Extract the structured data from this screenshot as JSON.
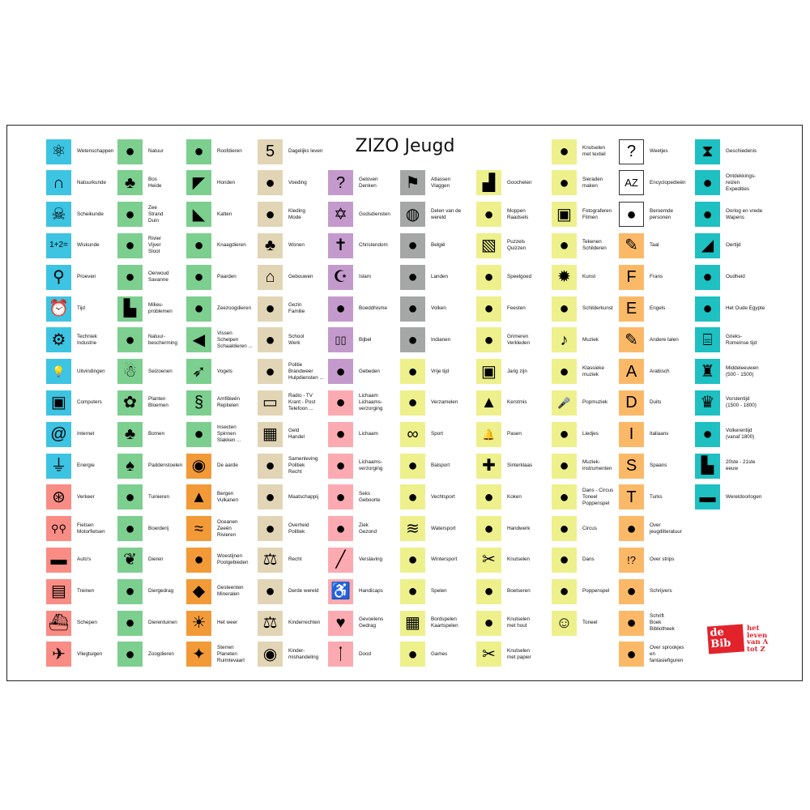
{
  "title": "ZIZO Jeugd",
  "colors": {
    "cyan": "#3cc4e2",
    "green": "#7ccf8e",
    "salmon": "#f98c84",
    "orange": "#f39a38",
    "tan": "#e2d5b5",
    "purple": "#c49acd",
    "pink": "#fcaab1",
    "gray": "#a5a7a7",
    "yellow": "#eef08c",
    "lightorange": "#fbb968",
    "teal": "#1ec0c2",
    "white": "#ffffff"
  },
  "logo": {
    "mark": "de Bib",
    "tagline": "het\nleven\nvan A\ntot Z"
  },
  "columns": [
    [
      {
        "label": "Wetenschappen",
        "icon": "atom-icon",
        "color": "cyan"
      },
      {
        "label": "Natuurkunde",
        "icon": "magnet-icon",
        "color": "cyan"
      },
      {
        "label": "Scheikunde",
        "icon": "skull-icon",
        "color": "cyan"
      },
      {
        "label": "Wiskunde",
        "icon": "math-icon",
        "color": "cyan"
      },
      {
        "label": "Proeven",
        "icon": "flask-icon",
        "color": "cyan"
      },
      {
        "label": "Tijd",
        "icon": "alarm-clock-icon",
        "color": "cyan"
      },
      {
        "label": "Techniek\nIndustrie",
        "icon": "gears-icon",
        "color": "cyan"
      },
      {
        "label": "Uitvindingen",
        "icon": "lightbulb-icon",
        "color": "cyan"
      },
      {
        "label": "Computers",
        "icon": "computer-icon",
        "color": "cyan"
      },
      {
        "label": "Internet",
        "icon": "at-sign-icon",
        "color": "cyan"
      },
      {
        "label": "Energie",
        "icon": "plug-icon",
        "color": "cyan"
      },
      {
        "label": "Verkeer",
        "icon": "wheel-icon",
        "color": "salmon"
      },
      {
        "label": "Fietsen\nMotorfietsen",
        "icon": "bicycle-icon",
        "color": "salmon"
      },
      {
        "label": "Auto's",
        "icon": "car-icon",
        "color": "salmon"
      },
      {
        "label": "Treinen",
        "icon": "train-icon",
        "color": "salmon"
      },
      {
        "label": "Schepen",
        "icon": "ship-icon",
        "color": "salmon"
      },
      {
        "label": "Vliegtuigen",
        "icon": "airplane-icon",
        "color": "salmon"
      }
    ],
    [
      {
        "label": "Natuur",
        "icon": "nature-icon",
        "color": "green"
      },
      {
        "label": "Bos\nHeide",
        "icon": "forest-icon",
        "color": "green"
      },
      {
        "label": "Zee\nStrand\nDuin",
        "icon": "starfish-icon",
        "color": "green"
      },
      {
        "label": "Rivier\nVijver\nSloot",
        "icon": "pond-icon",
        "color": "green"
      },
      {
        "label": "Oerwoud\nSavanne",
        "icon": "jungle-icon",
        "color": "green"
      },
      {
        "label": "Milieu-\nproblemen",
        "icon": "factory-icon",
        "color": "green"
      },
      {
        "label": "Natuur-\nbescherming",
        "icon": "tree-stump-icon",
        "color": "green"
      },
      {
        "label": "Seizoenen",
        "icon": "snowman-icon",
        "color": "green"
      },
      {
        "label": "Planten\nBloemen",
        "icon": "flower-icon",
        "color": "green"
      },
      {
        "label": "Bomen",
        "icon": "tree-icon",
        "color": "green"
      },
      {
        "label": "Paddenstoelen",
        "icon": "mushroom-icon",
        "color": "green"
      },
      {
        "label": "Tuinieren",
        "icon": "shovel-icon",
        "color": "green"
      },
      {
        "label": "Boerderij",
        "icon": "tractor-icon",
        "color": "green"
      },
      {
        "label": "Dieren",
        "icon": "paw-icon",
        "color": "green"
      },
      {
        "label": "Diergedrag",
        "icon": "nest-icon",
        "color": "green"
      },
      {
        "label": "Dierentuinen",
        "icon": "cage-icon",
        "color": "green"
      },
      {
        "label": "Zoogdieren",
        "icon": "elephant-icon",
        "color": "green"
      }
    ],
    [
      {
        "label": "Roofdieren",
        "icon": "tiger-icon",
        "color": "green"
      },
      {
        "label": "Honden",
        "icon": "dog-icon",
        "color": "green"
      },
      {
        "label": "Katten",
        "icon": "cat-icon",
        "color": "green"
      },
      {
        "label": "Knaagdieren",
        "icon": "rabbit-icon",
        "color": "green"
      },
      {
        "label": "Paarden",
        "icon": "horse-icon",
        "color": "green"
      },
      {
        "label": "Zeezoogdieren",
        "icon": "dolphin-icon",
        "color": "green"
      },
      {
        "label": "Vissen\nSchelpen\nSchaaldieren ...",
        "icon": "fish-icon",
        "color": "green"
      },
      {
        "label": "Vogels",
        "icon": "bird-icon",
        "color": "green"
      },
      {
        "label": "Amfibieën\nReptielen",
        "icon": "snake-icon",
        "color": "green"
      },
      {
        "label": "Insecten\nSpinnen\nSlakken ...",
        "icon": "fly-icon",
        "color": "green"
      },
      {
        "label": "De aarde",
        "icon": "earth-icon",
        "color": "orange"
      },
      {
        "label": "Bergen\nVulkanen",
        "icon": "volcano-icon",
        "color": "orange"
      },
      {
        "label": "Oceanen\nZeeën\nRivieren",
        "icon": "wave-icon",
        "color": "orange"
      },
      {
        "label": "Woestijnen\nPoolgebieden",
        "icon": "cactus-igloo-icon",
        "color": "orange"
      },
      {
        "label": "Gesteenten\nMineralen",
        "icon": "diamond-icon",
        "color": "orange"
      },
      {
        "label": "Het weer",
        "icon": "sun-cloud-icon",
        "color": "orange"
      },
      {
        "label": "Sterren\nPlaneten\nRuimtevaart",
        "icon": "rocket-icon",
        "color": "orange"
      }
    ],
    [
      {
        "label": "Dagelijks leven",
        "icon": "calendar-icon",
        "color": "tan"
      },
      {
        "label": "Voeding",
        "icon": "plate-icon",
        "color": "tan"
      },
      {
        "label": "Kleding\nMode",
        "icon": "clothing-icon",
        "color": "tan"
      },
      {
        "label": "Wonen",
        "icon": "house-tree-icon",
        "color": "tan"
      },
      {
        "label": "Gebouwen",
        "icon": "building-icon",
        "color": "tan"
      },
      {
        "label": "Gezin\nFamilie",
        "icon": "family-icon",
        "color": "tan"
      },
      {
        "label": "School\nWerk",
        "icon": "blackboard-icon",
        "color": "tan"
      },
      {
        "label": "Politie\nBrandweer\nHulpdiensten ...",
        "icon": "police-icon",
        "color": "tan"
      },
      {
        "label": "Radio - TV\nKrant - Post\nTelefoon ...",
        "icon": "tv-icon",
        "color": "tan"
      },
      {
        "label": "Geld\nHandel",
        "icon": "money-icon",
        "color": "tan"
      },
      {
        "label": "Samenleving\nPolitiek\nRecht",
        "icon": "people-icon",
        "color": "tan"
      },
      {
        "label": "Maatschappij",
        "icon": "society-icon",
        "color": "tan"
      },
      {
        "label": "Overheid\nPolitiek",
        "icon": "pen-icon",
        "color": "tan"
      },
      {
        "label": "Recht",
        "icon": "justice-icon",
        "color": "tan"
      },
      {
        "label": "Derde wereld",
        "icon": "world-map-icon",
        "color": "tan"
      },
      {
        "label": "Kinderrechten",
        "icon": "scales-icon",
        "color": "tan"
      },
      {
        "label": "Kinder-\nmishandeling",
        "icon": "crying-eye-icon",
        "color": "tan"
      }
    ],
    [
      {
        "label": "Geloven\nDenken",
        "icon": "head-question-icon",
        "color": "purple"
      },
      {
        "label": "Godsdiensten",
        "icon": "religion-symbols-icon",
        "color": "purple"
      },
      {
        "label": "Christendom",
        "icon": "cross-icon",
        "color": "purple"
      },
      {
        "label": "Islam",
        "icon": "mosque-icon",
        "color": "purple"
      },
      {
        "label": "Boeddhisme",
        "icon": "buddha-icon",
        "color": "purple"
      },
      {
        "label": "Bijbel",
        "icon": "book-icon",
        "color": "purple"
      },
      {
        "label": "Gebeden",
        "icon": "praying-icon",
        "color": "purple"
      },
      {
        "label": "Lichaam\nLichaams-\nverzorging",
        "icon": "skeleton-icon",
        "color": "pink"
      },
      {
        "label": "Lichaam",
        "icon": "body-icon",
        "color": "pink"
      },
      {
        "label": "Lichaams-\nverzorging",
        "icon": "toothbrush-icon",
        "color": "pink"
      },
      {
        "label": "Seks\nGeboorte",
        "icon": "man-woman-icon",
        "color": "pink"
      },
      {
        "label": "Ziek\nGezond",
        "icon": "stethoscope-icon",
        "color": "pink"
      },
      {
        "label": "Verslaving",
        "icon": "syringe-icon",
        "color": "pink"
      },
      {
        "label": "Handicaps",
        "icon": "wheelchair-icon",
        "color": "pink"
      },
      {
        "label": "Gevoelens\nGedrag",
        "icon": "heart-icon",
        "color": "pink"
      },
      {
        "label": "Dood",
        "icon": "candle-icon",
        "color": "pink"
      }
    ],
    [
      {
        "label": "Atlassen\nVlaggen",
        "icon": "flag-icon",
        "color": "gray"
      },
      {
        "label": "Delen van de\nwereld",
        "icon": "globe-icon",
        "color": "gray"
      },
      {
        "label": "België",
        "icon": "belgium-map-icon",
        "color": "gray"
      },
      {
        "label": "Landen",
        "icon": "landen-icon",
        "color": "gray"
      },
      {
        "label": "Volken",
        "icon": "archer-icon",
        "color": "gray"
      },
      {
        "label": "Indianen",
        "icon": "tent-icon",
        "color": "gray"
      },
      {
        "label": "Vrije tijd",
        "icon": "kite-icon",
        "color": "yellow"
      },
      {
        "label": "Verzamelen",
        "icon": "stamp-icon",
        "color": "yellow"
      },
      {
        "label": "Sport",
        "icon": "olympic-rings-icon",
        "color": "yellow"
      },
      {
        "label": "Balsport",
        "icon": "football-icon",
        "color": "yellow"
      },
      {
        "label": "Vechtsport",
        "icon": "martial-arts-icon",
        "color": "yellow"
      },
      {
        "label": "Watersport",
        "icon": "swimmer-icon",
        "color": "yellow"
      },
      {
        "label": "Wintersport",
        "icon": "skier-icon",
        "color": "yellow"
      },
      {
        "label": "Spelen",
        "icon": "playing-child-icon",
        "color": "yellow"
      },
      {
        "label": "Bordspelen\nKaartspelen",
        "icon": "checkerboard-icon",
        "color": "yellow"
      },
      {
        "label": "Games",
        "icon": "game-console-icon",
        "color": "yellow"
      }
    ],
    [
      {
        "label": "Goochelen",
        "icon": "magic-hat-icon",
        "color": "yellow"
      },
      {
        "label": "Moppen\nRaadsels",
        "icon": "clown-face-icon",
        "color": "yellow"
      },
      {
        "label": "Puzzels\nQuizzen",
        "icon": "puzzle-icon",
        "color": "yellow"
      },
      {
        "label": "Speelgoed",
        "icon": "teddy-bear-icon",
        "color": "yellow"
      },
      {
        "label": "Feesten",
        "icon": "champagne-icon",
        "color": "yellow"
      },
      {
        "label": "Grimeren\nVerkleden",
        "icon": "mask-icon",
        "color": "yellow"
      },
      {
        "label": "Jarig zijn",
        "icon": "gift-icon",
        "color": "yellow"
      },
      {
        "label": "Kerstmis",
        "icon": "christmas-tree-icon",
        "color": "yellow"
      },
      {
        "label": "Pasen",
        "icon": "bell-icon",
        "color": "yellow"
      },
      {
        "label": "Sinterklaas",
        "icon": "mitre-icon",
        "color": "yellow"
      },
      {
        "label": "Koken",
        "icon": "chef-icon",
        "color": "yellow"
      },
      {
        "label": "Handwerk",
        "icon": "yarn-icon",
        "color": "yellow"
      },
      {
        "label": "Knutselen",
        "icon": "scissors-icon",
        "color": "yellow"
      },
      {
        "label": "Boetseren",
        "icon": "jug-icon",
        "color": "yellow"
      },
      {
        "label": "Knutselen\nmet hout",
        "icon": "saw-icon",
        "color": "yellow"
      },
      {
        "label": "Knutselen\nmet papier",
        "icon": "paper-scissors-icon",
        "color": "yellow"
      }
    ],
    [
      {
        "label": "Knutselen\nmet textiel",
        "icon": "doll-icon",
        "color": "yellow"
      },
      {
        "label": "Sieraden\nmaken",
        "icon": "necklace-icon",
        "color": "yellow"
      },
      {
        "label": "Fotograferen\nFilmen",
        "icon": "camera-icon",
        "color": "yellow"
      },
      {
        "label": "Tekenen\nSchilderen",
        "icon": "palette-icon",
        "color": "yellow"
      },
      {
        "label": "Kunst",
        "icon": "splash-icon",
        "color": "yellow"
      },
      {
        "label": "Schilderkunst",
        "icon": "paint-palette-icon",
        "color": "yellow"
      },
      {
        "label": "Muziek",
        "icon": "music-note-icon",
        "color": "yellow"
      },
      {
        "label": "Klassieke\nmuziek",
        "icon": "conductor-icon",
        "color": "yellow"
      },
      {
        "label": "Popmuziek",
        "icon": "microphone-icon",
        "color": "yellow"
      },
      {
        "label": "Liedjes",
        "icon": "singing-icon",
        "color": "yellow"
      },
      {
        "label": "Muziek-\ninstrumenten",
        "icon": "tuba-icon",
        "color": "yellow"
      },
      {
        "label": "Dans - Circus\nToneel\nPoppenspel",
        "icon": "puppet-icon",
        "color": "yellow"
      },
      {
        "label": "Circus",
        "icon": "clown-icon",
        "color": "yellow"
      },
      {
        "label": "Dans",
        "icon": "ballet-shoes-icon",
        "color": "yellow"
      },
      {
        "label": "Poppenspel",
        "icon": "marionette-icon",
        "color": "yellow"
      },
      {
        "label": "Toneel",
        "icon": "theatre-masks-icon",
        "color": "yellow"
      }
    ],
    [
      {
        "label": "Weetjes",
        "icon": "question-mark-icon",
        "color": "white"
      },
      {
        "label": "Encyclopedieën",
        "icon": "a-z-icon",
        "color": "white"
      },
      {
        "label": "Beroemde\npersonen",
        "icon": "silhouette-icon",
        "color": "white"
      },
      {
        "label": "Taal",
        "icon": "quill-icon",
        "color": "lightorange"
      },
      {
        "label": "Frans",
        "icon": "quill-f-icon",
        "color": "lightorange"
      },
      {
        "label": "Engels",
        "icon": "quill-e-icon",
        "color": "lightorange"
      },
      {
        "label": "Andere talen",
        "icon": "quill-dots-icon",
        "color": "lightorange"
      },
      {
        "label": "Arabisch",
        "icon": "quill-a-icon",
        "color": "lightorange"
      },
      {
        "label": "Duits",
        "icon": "quill-d-icon",
        "color": "lightorange"
      },
      {
        "label": "Italiaans",
        "icon": "quill-i-icon",
        "color": "lightorange"
      },
      {
        "label": "Spaans",
        "icon": "quill-s-icon",
        "color": "lightorange"
      },
      {
        "label": "Turks",
        "icon": "quill-t-icon",
        "color": "lightorange"
      },
      {
        "label": "Over\njeugdliteratuur",
        "icon": "reading-child-icon",
        "color": "lightorange"
      },
      {
        "label": "Over strips",
        "icon": "speech-bubble-icon",
        "color": "lightorange"
      },
      {
        "label": "Schrijvers",
        "icon": "writer-icon",
        "color": "lightorange"
      },
      {
        "label": "Schrift\nBoek\nBibliotheek",
        "icon": "library-icon",
        "color": "lightorange"
      },
      {
        "label": "Over sprookjes\nen\nfantasiefiguren",
        "icon": "witch-icon",
        "color": "lightorange"
      }
    ],
    [
      {
        "label": "Geschiedenis",
        "icon": "hourglass-icon",
        "color": "teal"
      },
      {
        "label": "Ontdekkings-\nreizen\nExpedities",
        "icon": "sailing-ship-icon",
        "color": "teal"
      },
      {
        "label": "Oorlog en vrede\nWapens",
        "icon": "bomb-icon",
        "color": "teal"
      },
      {
        "label": "Oertijd",
        "icon": "dinosaur-icon",
        "color": "teal"
      },
      {
        "label": "Oudheid",
        "icon": "amphora-icon",
        "color": "teal"
      },
      {
        "label": "Het Oude Egypte",
        "icon": "sphinx-icon",
        "color": "teal"
      },
      {
        "label": "Grieks-\nRomeinse tijd",
        "icon": "temple-icon",
        "color": "teal"
      },
      {
        "label": "Middeleeuwen\n(500 - 1500)",
        "icon": "castle-icon",
        "color": "teal"
      },
      {
        "label": "Vorstentijd\n(1500 - 1800)",
        "icon": "crown-icon",
        "color": "teal"
      },
      {
        "label": "Volkerentijd\n(vanaf 1800)",
        "icon": "napoleon-icon",
        "color": "teal"
      },
      {
        "label": "20ste - 21ste eeuw",
        "icon": "city-icon",
        "color": "teal"
      },
      {
        "label": "Wereldoorlogen",
        "icon": "tank-icon",
        "color": "teal"
      }
    ]
  ]
}
